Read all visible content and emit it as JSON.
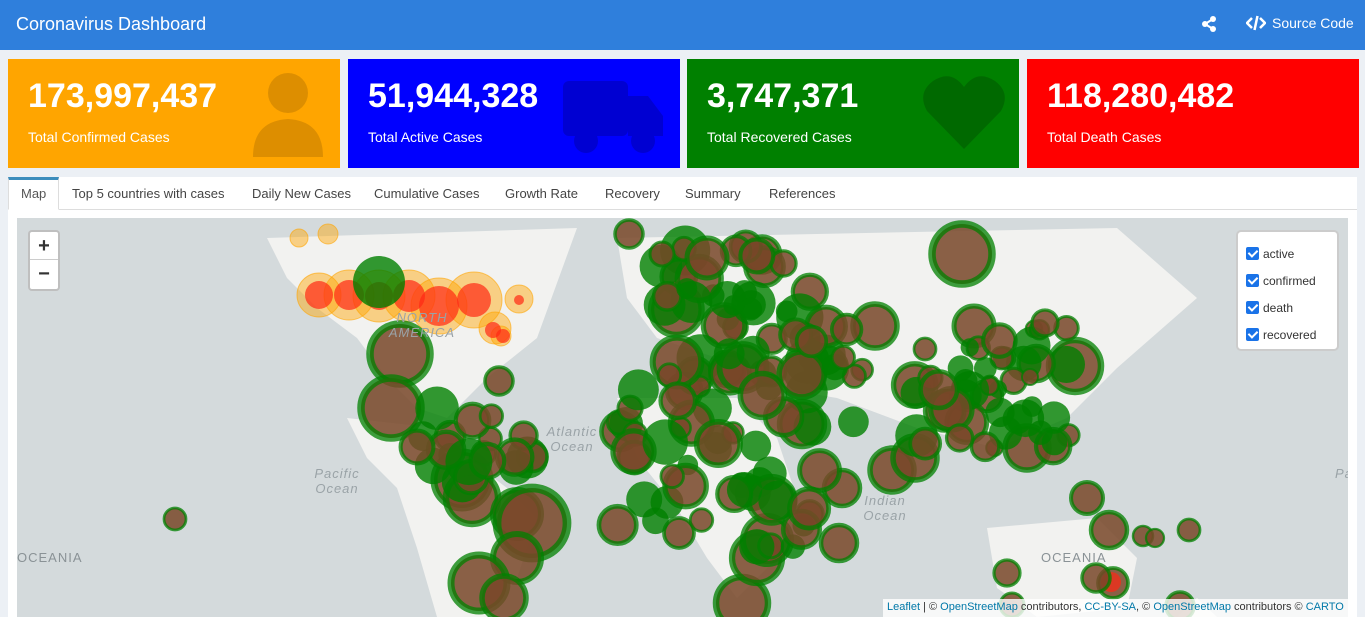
{
  "header": {
    "title": "Coronavirus Dashboard",
    "share_icon": "share-icon",
    "source_label": "Source Code",
    "source_icon": "code-icon"
  },
  "boxes": [
    {
      "value": "173,997,437",
      "label": "Total Confirmed Cases",
      "color": "#ffa500",
      "icon": "user-doctor-icon"
    },
    {
      "value": "51,944,328",
      "label": "Total Active Cases",
      "color": "#0000ff",
      "icon": "ambulance-icon"
    },
    {
      "value": "3,747,371",
      "label": "Total Recovered Cases",
      "color": "#008000",
      "icon": "heartbeat-icon"
    },
    {
      "value": "118,280,482",
      "label": "Total Death Cases",
      "color": "#ff0000",
      "icon": ""
    }
  ],
  "tabs": [
    {
      "label": "Map",
      "active": true
    },
    {
      "label": "Top 5 countries with cases"
    },
    {
      "label": "Daily New Cases"
    },
    {
      "label": "Cumulative Cases"
    },
    {
      "label": "Growth Rate"
    },
    {
      "label": "Recovery"
    },
    {
      "label": "Summary"
    },
    {
      "label": "References"
    }
  ],
  "map": {
    "zoom_in": "+",
    "zoom_out": "−",
    "layers": [
      {
        "label": "active",
        "checked": true
      },
      {
        "label": "confirmed",
        "checked": true
      },
      {
        "label": "death",
        "checked": true
      },
      {
        "label": "recovered",
        "checked": true
      }
    ],
    "labels": [
      "NORTH AMERICA",
      "Atlantic Ocean",
      "Pacific Ocean",
      "Indian Ocean",
      "OCEANIA",
      "OCEANIA",
      "Pa"
    ],
    "attribution": {
      "leaflet": "Leaflet",
      "sep1": " | © ",
      "osm": "OpenStreetMap",
      "contrib1": " contributors, ",
      "ccbysa": "CC-BY-SA",
      "sep2": ", © ",
      "osm2": "OpenStreetMap",
      "contrib2": " contributors © ",
      "carto": "CARTO"
    }
  }
}
